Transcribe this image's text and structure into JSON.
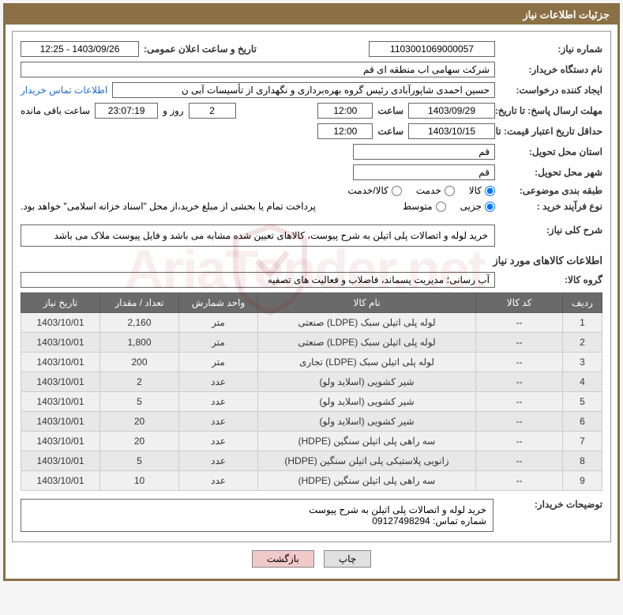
{
  "panel_title": "جزئیات اطلاعات نیاز",
  "fields": {
    "need_no_label": "شماره نیاز:",
    "need_no": "1103001069000057",
    "announce_label": "تاریخ و ساعت اعلان عمومی:",
    "announce_value": "1403/09/26 - 12:25",
    "buyer_org_label": "نام دستگاه خریدار:",
    "buyer_org": "شرکت سهامی اب منطقه ای قم",
    "requester_label": "ایجاد کننده درخواست:",
    "requester": "حسین احمدی شاپورآبادی رئیس گروه بهره‌برداری و نگهداری از تأسیسات آبی ن",
    "contact_link": "اطلاعات تماس خریدار",
    "reply_deadline_label": "مهلت ارسال پاسخ: تا تاریخ:",
    "reply_date": "1403/09/29",
    "time_label": "ساعت",
    "reply_time": "12:00",
    "days_remaining": "2",
    "days_word": "روز و",
    "time_remaining": "23:07:19",
    "remaining_tail": "ساعت باقی مانده",
    "price_validity_label": "حداقل تاریخ اعتبار قیمت: تا تاریخ:",
    "price_date": "1403/10/15",
    "price_time": "12:00",
    "deliver_province_label": "استان محل تحویل:",
    "deliver_province": "قم",
    "deliver_city_label": "شهر محل تحویل:",
    "deliver_city": "قم",
    "subject_class_label": "طبقه بندی موضوعی:",
    "class_kala": "کالا",
    "class_khedmat": "خدمت",
    "class_kalakhedmat": "کالا/خدمت",
    "process_label": "نوع فرآیند خرید :",
    "process_partial": "جزیی",
    "process_medium": "متوسط",
    "payment_note": "پرداخت تمام یا بخشی از مبلغ خرید،از محل \"اسناد خزانه اسلامی\" خواهد بود.",
    "overall_desc_label": "شرح کلی نیاز:",
    "overall_desc": "خرید لوله و اتصالات پلی اتیلن به شرح پیوست، کالاهای تعیین شده مشابه می باشد و فایل پیوست ملاک می باشد",
    "items_info_title": "اطلاعات کالاهای مورد نیاز",
    "group_label": "گروه کالا:",
    "group_value": "آب رسانی؛ مدیریت پسماند، فاضلاب و فعالیت های تصفیه",
    "buyer_note_label": "توضیحات خریدار:",
    "buyer_note": "خرید لوله و اتصالات پلی اتیلن به شرح پیوست\nشماره تماس: 09127498294"
  },
  "table": {
    "headers": {
      "row": "ردیف",
      "code": "کد کالا",
      "name": "نام کالا",
      "unit": "واحد شمارش",
      "qty": "تعداد / مقدار",
      "date": "تاریخ نیاز"
    },
    "rows": [
      {
        "n": "1",
        "code": "--",
        "name": "لوله پلی اتیلن سبک (LDPE) صنعتی",
        "unit": "متر",
        "qty": "2,160",
        "date": "1403/10/01"
      },
      {
        "n": "2",
        "code": "--",
        "name": "لوله پلی اتیلن سبک (LDPE) صنعتی",
        "unit": "متر",
        "qty": "1,800",
        "date": "1403/10/01"
      },
      {
        "n": "3",
        "code": "--",
        "name": "لوله پلی اتیلن سبک (LDPE) تجاری",
        "unit": "متر",
        "qty": "200",
        "date": "1403/10/01"
      },
      {
        "n": "4",
        "code": "--",
        "name": "شیر کشویی (اسلاید ولو)",
        "unit": "عدد",
        "qty": "2",
        "date": "1403/10/01"
      },
      {
        "n": "5",
        "code": "--",
        "name": "شیر کشویی (اسلاید ولو)",
        "unit": "عدد",
        "qty": "5",
        "date": "1403/10/01"
      },
      {
        "n": "6",
        "code": "--",
        "name": "شیر کشویی (اسلاید ولو)",
        "unit": "عدد",
        "qty": "20",
        "date": "1403/10/01"
      },
      {
        "n": "7",
        "code": "--",
        "name": "سه راهی پلی اتیلن سنگین (HDPE)",
        "unit": "عدد",
        "qty": "20",
        "date": "1403/10/01"
      },
      {
        "n": "8",
        "code": "--",
        "name": "زانویی پلاستیکی پلی اتیلن سنگین (HDPE)",
        "unit": "عدد",
        "qty": "5",
        "date": "1403/10/01"
      },
      {
        "n": "9",
        "code": "--",
        "name": "سه راهی پلی اتیلن سنگین (HDPE)",
        "unit": "عدد",
        "qty": "10",
        "date": "1403/10/01"
      }
    ]
  },
  "buttons": {
    "print": "چاپ",
    "back": "بازگشت"
  },
  "colors": {
    "header_bg": "#8a7044",
    "th_bg": "#6a6a6a",
    "link": "#1e6bd6",
    "btn_back_bg": "#f2c9c9"
  }
}
